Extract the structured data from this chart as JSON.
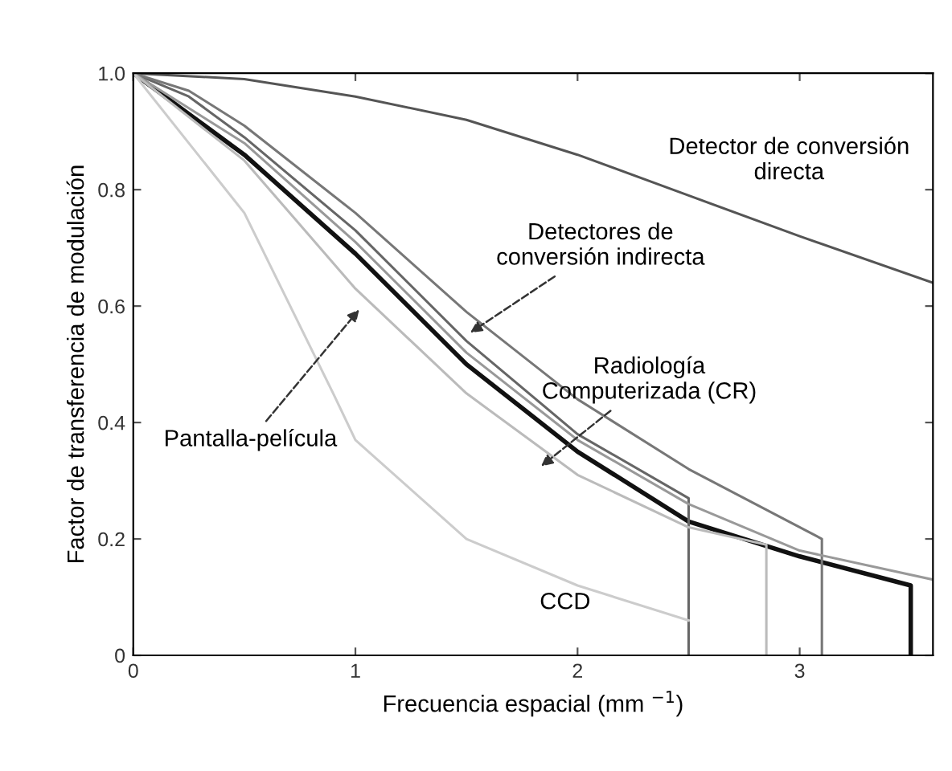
{
  "chart_data": {
    "type": "line",
    "xlabel": "Frecuencia espacial (mm $^{−1}$)",
    "ylabel": "Factor de transferencia de modulación",
    "xlim": [
      0,
      3.6
    ],
    "ylim": [
      0,
      1
    ],
    "xticks": [
      0,
      1,
      2,
      3
    ],
    "yticks": [
      0,
      0.2,
      0.4,
      0.6,
      0.8,
      {
        "value": 1,
        "label": "1.0"
      }
    ],
    "grid": false,
    "legend": false,
    "marker": "none",
    "line_style": "solid",
    "series": [
      {
        "color": "#555555",
        "x": [
          0,
          0.5,
          1,
          1.5,
          2,
          2.5,
          3,
          3.6
        ],
        "values": [
          1,
          0.99,
          0.96,
          0.92,
          0.86,
          0.79,
          0.72,
          0.64
        ]
      },
      {
        "color": "#111111",
        "x": [
          0,
          0.25,
          0.5,
          1,
          1.5,
          2,
          2.5,
          3,
          3.5,
          3.5
        ],
        "values": [
          1,
          0.93,
          0.86,
          0.69,
          0.5,
          0.35,
          0.23,
          0.17,
          0.12,
          0
        ]
      },
      {
        "color": "#666666",
        "x": [
          0,
          0.25,
          0.5,
          1,
          1.5,
          2,
          2.5,
          2.5
        ],
        "values": [
          1,
          0.96,
          0.89,
          0.73,
          0.54,
          0.38,
          0.27,
          0
        ]
      },
      {
        "color": "#777777",
        "x": [
          0,
          0.25,
          0.5,
          1,
          1.5,
          2,
          2.5,
          3.1,
          3.1
        ],
        "values": [
          1,
          0.97,
          0.91,
          0.76,
          0.59,
          0.44,
          0.32,
          0.2,
          0
        ]
      },
      {
        "color": "#999999",
        "x": [
          0,
          0.5,
          1,
          1.5,
          2,
          2.5,
          3,
          3.6
        ],
        "values": [
          1,
          0.88,
          0.71,
          0.52,
          0.37,
          0.26,
          0.18,
          0.13
        ]
      },
      {
        "color": "#bbbbbb",
        "x": [
          0,
          0.5,
          1,
          1.5,
          2,
          2.5,
          2.85,
          2.85
        ],
        "values": [
          1,
          0.85,
          0.63,
          0.45,
          0.31,
          0.22,
          0.19,
          0
        ]
      },
      {
        "color": "#cccccc",
        "x": [
          0,
          0.5,
          0.9,
          1,
          1.5,
          2,
          2.5
        ],
        "values": [
          1,
          0.76,
          0.45,
          0.37,
          0.2,
          0.12,
          0.06
        ]
      }
    ],
    "annotations": [
      "Detector de conversión\ndirecta",
      {
        "text": "Detectores de\nconversión indirecta",
        "x": 1.5,
        "y": 0.55
      },
      {
        "text": "Radiología\nComputerizada (CR)",
        "x": 1.82,
        "y": 0.32
      },
      {
        "text": "Pantalla-película",
        "x": 1.03,
        "y": 0.6
      },
      "CCD"
    ]
  }
}
